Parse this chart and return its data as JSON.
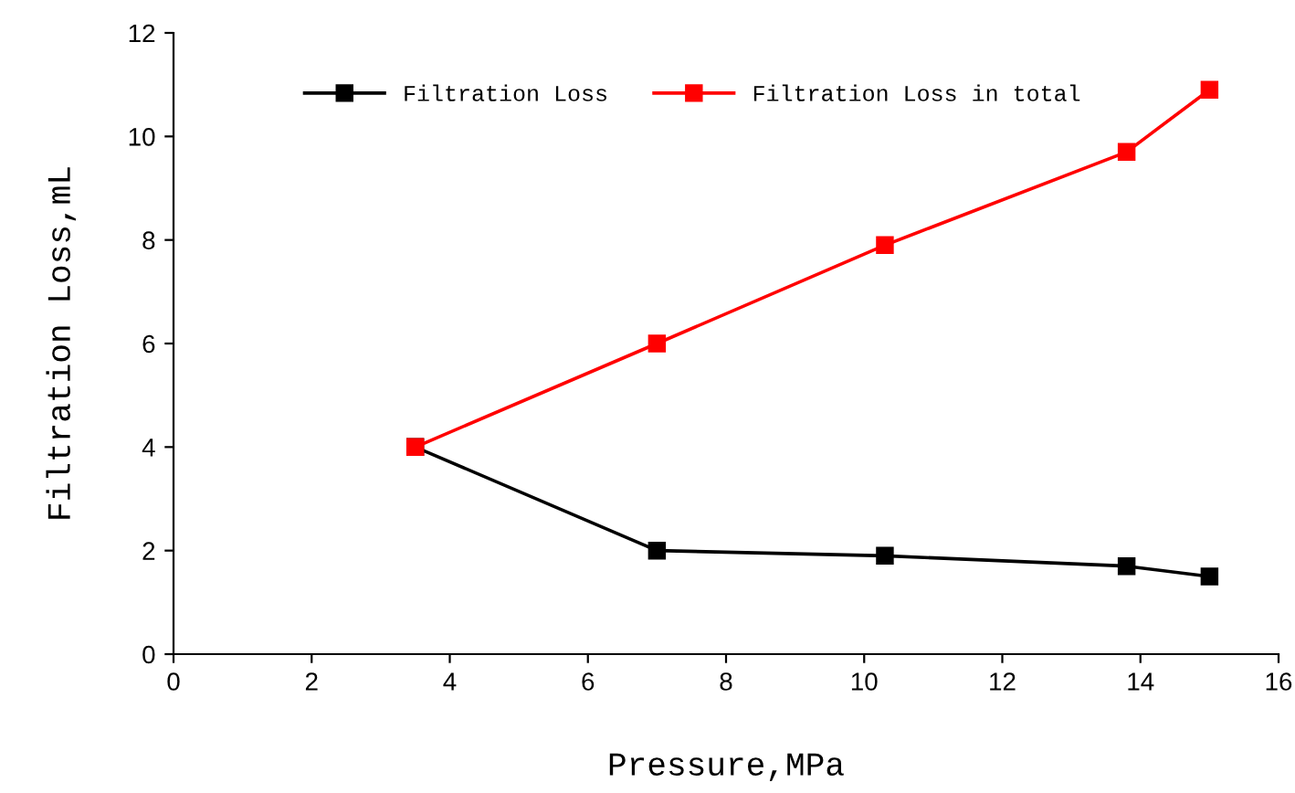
{
  "chart_data": {
    "type": "line",
    "xlabel": "Pressure,MPa",
    "ylabel": "Filtration Loss,mL",
    "xlim": [
      0,
      16
    ],
    "xticks": [
      0,
      2,
      4,
      6,
      8,
      10,
      12,
      14,
      16
    ],
    "ylim": [
      0,
      12
    ],
    "yticks": [
      0,
      2,
      4,
      6,
      8,
      10,
      12
    ],
    "grid": false,
    "legend": "top left",
    "marker": "square",
    "line_style": "solid",
    "series": [
      {
        "name": "Filtration Loss",
        "color": "#000000",
        "x": [
          3.5,
          7,
          10.3,
          13.8,
          15
        ],
        "values": [
          4,
          2,
          1.9,
          1.7,
          1.5
        ]
      },
      {
        "name": "Filtration Loss in total",
        "color": "#ff0000",
        "x": [
          3.5,
          7,
          10.3,
          13.8,
          15
        ],
        "values": [
          4,
          6,
          7.9,
          9.7,
          10.9
        ]
      }
    ]
  }
}
